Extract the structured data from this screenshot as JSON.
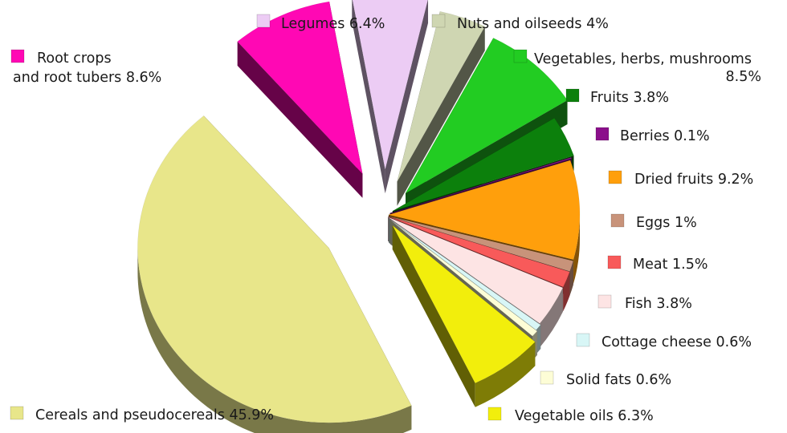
{
  "chart_data": {
    "type": "pie",
    "style": "3d-exploded",
    "title": "",
    "slices": [
      {
        "name": "Legumes",
        "value": 6.4,
        "label": "Legumes 6.4%",
        "color": "#ecccf4"
      },
      {
        "name": "Nuts and oilseeds",
        "value": 4,
        "label": "Nuts and oilseeds   4%",
        "color": "#cfd6b2"
      },
      {
        "name": "Vegetables, herbs, mushrooms",
        "value": 8.5,
        "label_lines": [
          "Vegetables, herbs, mushrooms",
          "8.5%"
        ],
        "color": "#22cc22"
      },
      {
        "name": "Fruits",
        "value": 3.8,
        "label": "Fruits   3.8%",
        "color": "#0c800c"
      },
      {
        "name": "Berries",
        "value": 0.1,
        "label": "Berries   0.1%",
        "color": "#8b0f8b"
      },
      {
        "name": "Dried fruits",
        "value": 9.2,
        "label": "Dried fruits   9.2%",
        "color": "#ff9f0c"
      },
      {
        "name": "Eggs",
        "value": 1,
        "label": "Eggs   1%",
        "color": "#c8937a"
      },
      {
        "name": "Meat",
        "value": 1.5,
        "label": "Meat   1.5%",
        "color": "#f85a5a"
      },
      {
        "name": "Fish",
        "value": 3.8,
        "label": "Fish   3.8%",
        "color": "#fde4e4"
      },
      {
        "name": "Cottage cheese",
        "value": 0.6,
        "label": "Cottage cheese   0.6%",
        "color": "#d8f6f6"
      },
      {
        "name": "Solid fats",
        "value": 0.6,
        "label": "Solid fats   0.6%",
        "color": "#fdfdd6"
      },
      {
        "name": "Vegetable oils",
        "value": 6.3,
        "label": "Vegetable oils   6.3%",
        "color": "#f2ee0c"
      },
      {
        "name": "Cereals and pseudocereals",
        "value": 45.9,
        "label": "Cereals and pseudocereals 45.9%",
        "color": "#e8e68a"
      },
      {
        "name": "Root crops and root tubers",
        "value": 8.6,
        "label_lines": [
          "Root crops",
          "and root tubers 8.6%"
        ],
        "color": "#ff08b4"
      }
    ]
  }
}
